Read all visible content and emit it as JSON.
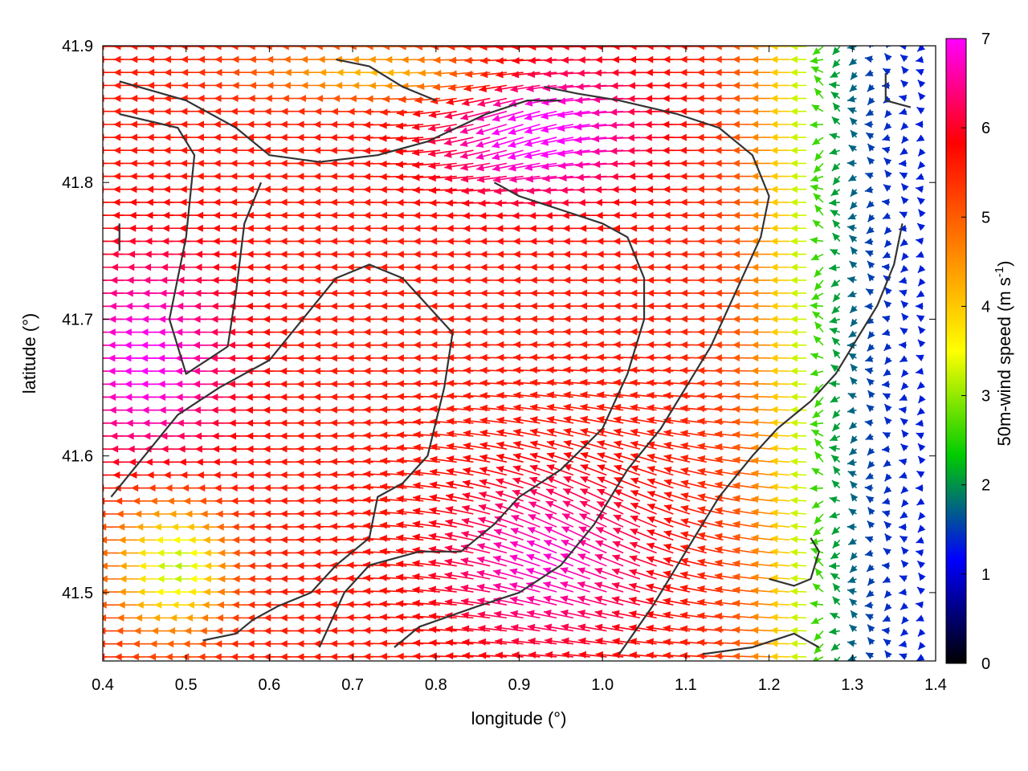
{
  "chart_data": {
    "type": "quiver",
    "title": "",
    "xlabel": "longitude (°)",
    "ylabel": "latitude (°)",
    "xlim": [
      0.4,
      1.4
    ],
    "ylim": [
      41.45,
      41.9
    ],
    "xticks": [
      "0.4",
      "0.5",
      "0.6",
      "0.7",
      "0.8",
      "0.9",
      "1.0",
      "1.1",
      "1.2",
      "1.3",
      "1.4"
    ],
    "yticks": [
      "41.5",
      "41.6",
      "41.7",
      "41.8",
      "41.9"
    ],
    "colorbar": {
      "label_main": "50m-wind speed (m s",
      "label_sup": "-1",
      "label_end": ")",
      "range": [
        0,
        7
      ],
      "ticks": [
        "0",
        "1",
        "2",
        "3",
        "4",
        "5",
        "6",
        "7"
      ],
      "palette": [
        "#000000",
        "#0000ff",
        "#00cc00",
        "#ffff00",
        "#ff8000",
        "#ff0000",
        "#ff00ff"
      ]
    },
    "arrow_direction": "westward (toward decreasing longitude)",
    "speed_field_regions": [
      {
        "area": "western and central interior",
        "speed": 6.5
      },
      {
        "area": "south-central band",
        "speed": 7.0
      },
      {
        "area": "north-central lobe",
        "speed": 7.0
      },
      {
        "area": "east of longitude 1.25",
        "speed": 1.5
      },
      {
        "area": "south-west corner",
        "speed": 2.5
      }
    ],
    "boundary_lines": [
      [
        [
          0.42,
          41.874
        ],
        [
          0.5,
          41.86
        ],
        [
          0.56,
          41.84
        ],
        [
          0.6,
          41.82
        ],
        [
          0.66,
          41.815
        ],
        [
          0.73,
          41.82
        ],
        [
          0.79,
          41.83
        ],
        [
          0.86,
          41.85
        ],
        [
          0.91,
          41.86
        ],
        [
          0.95,
          41.86
        ]
      ],
      [
        [
          0.42,
          41.85
        ],
        [
          0.49,
          41.84
        ],
        [
          0.51,
          41.82
        ],
        [
          0.5,
          41.76
        ],
        [
          0.48,
          41.7
        ],
        [
          0.5,
          41.66
        ],
        [
          0.55,
          41.68
        ],
        [
          0.56,
          41.72
        ],
        [
          0.57,
          41.77
        ],
        [
          0.59,
          41.8
        ]
      ],
      [
        [
          0.41,
          41.57
        ],
        [
          0.45,
          41.6
        ],
        [
          0.49,
          41.63
        ],
        [
          0.54,
          41.65
        ],
        [
          0.6,
          41.67
        ],
        [
          0.64,
          41.7
        ],
        [
          0.68,
          41.73
        ],
        [
          0.72,
          41.74
        ],
        [
          0.76,
          41.73
        ],
        [
          0.79,
          41.71
        ],
        [
          0.82,
          41.69
        ],
        [
          0.81,
          41.65
        ],
        [
          0.79,
          41.6
        ],
        [
          0.76,
          41.58
        ],
        [
          0.73,
          41.57
        ],
        [
          0.72,
          41.54
        ],
        [
          0.68,
          41.52
        ],
        [
          0.65,
          41.5
        ],
        [
          0.61,
          41.49
        ],
        [
          0.58,
          41.48
        ],
        [
          0.56,
          41.47
        ],
        [
          0.52,
          41.465
        ]
      ],
      [
        [
          0.66,
          41.46
        ],
        [
          0.69,
          41.5
        ],
        [
          0.72,
          41.52
        ],
        [
          0.78,
          41.53
        ],
        [
          0.83,
          41.53
        ],
        [
          0.87,
          41.55
        ],
        [
          0.9,
          41.57
        ],
        [
          0.95,
          41.59
        ],
        [
          1.0,
          41.62
        ],
        [
          1.03,
          41.66
        ],
        [
          1.05,
          41.7
        ],
        [
          1.05,
          41.73
        ],
        [
          1.03,
          41.76
        ],
        [
          1.0,
          41.77
        ],
        [
          0.95,
          41.78
        ],
        [
          0.9,
          41.79
        ],
        [
          0.87,
          41.8
        ]
      ],
      [
        [
          0.75,
          41.46
        ],
        [
          0.78,
          41.475
        ],
        [
          0.85,
          41.49
        ],
        [
          0.9,
          41.5
        ],
        [
          0.95,
          41.52
        ],
        [
          0.99,
          41.55
        ],
        [
          1.03,
          41.59
        ],
        [
          1.07,
          41.62
        ],
        [
          1.1,
          41.65
        ],
        [
          1.13,
          41.68
        ],
        [
          1.16,
          41.72
        ],
        [
          1.19,
          41.76
        ],
        [
          1.2,
          41.79
        ],
        [
          1.18,
          41.82
        ],
        [
          1.14,
          41.84
        ],
        [
          1.09,
          41.85
        ],
        [
          1.02,
          41.86
        ],
        [
          0.97,
          41.865
        ],
        [
          0.93,
          41.87
        ]
      ],
      [
        [
          1.02,
          41.455
        ],
        [
          1.06,
          41.49
        ],
        [
          1.1,
          41.53
        ],
        [
          1.14,
          41.57
        ],
        [
          1.18,
          41.6
        ],
        [
          1.21,
          41.62
        ],
        [
          1.25,
          41.64
        ],
        [
          1.28,
          41.66
        ],
        [
          1.3,
          41.68
        ],
        [
          1.33,
          41.71
        ],
        [
          1.35,
          41.74
        ],
        [
          1.36,
          41.77
        ]
      ],
      [
        [
          1.12,
          41.455
        ],
        [
          1.18,
          41.46
        ],
        [
          1.23,
          41.47
        ],
        [
          1.26,
          41.46
        ]
      ],
      [
        [
          1.2,
          41.51
        ],
        [
          1.23,
          41.505
        ],
        [
          1.25,
          41.51
        ],
        [
          1.26,
          41.53
        ],
        [
          1.25,
          41.54
        ]
      ],
      [
        [
          1.34,
          41.88
        ],
        [
          1.34,
          41.86
        ],
        [
          1.37,
          41.855
        ]
      ],
      [
        [
          0.42,
          41.77
        ],
        [
          0.42,
          41.75
        ]
      ],
      [
        [
          0.68,
          41.89
        ],
        [
          0.72,
          41.885
        ],
        [
          0.76,
          41.87
        ],
        [
          0.8,
          41.86
        ]
      ]
    ]
  }
}
